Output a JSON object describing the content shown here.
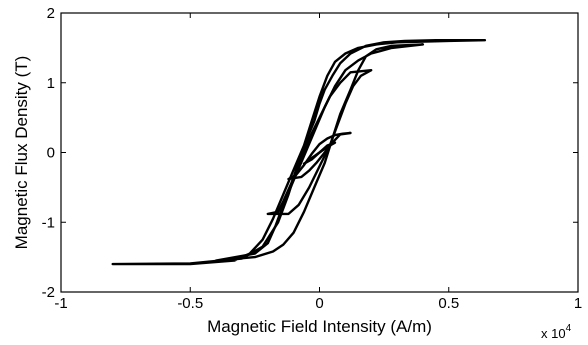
{
  "chart_data": {
    "type": "line",
    "title": "",
    "xlabel": "Magnetic Field Intensity (A/m)",
    "ylabel": "Magnetic Flux Density (T)",
    "x_scale_note": {
      "prefix": "x 10",
      "exponent": "4"
    },
    "xlim": [
      -1,
      1
    ],
    "ylim": [
      -2,
      2
    ],
    "x_ticks": [
      "-1",
      "-0.5",
      "0",
      "0.5",
      "1"
    ],
    "y_ticks": [
      "2",
      "1",
      "0",
      "-1",
      "-2"
    ],
    "grid": false,
    "legend": "none",
    "series": [
      {
        "x": [
          -0.8,
          -0.5,
          -0.33,
          -0.27,
          -0.22,
          -0.18,
          -0.14,
          -0.1,
          -0.06,
          -0.02,
          0.0,
          0.02,
          0.05,
          0.08,
          0.12,
          0.18,
          0.25,
          0.33,
          0.45,
          0.64,
          0.64,
          0.5,
          0.3,
          0.22,
          0.15,
          0.1,
          0.06,
          0.03,
          0.0,
          -0.03,
          -0.06,
          -0.09,
          -0.12,
          -0.16,
          -0.22,
          -0.3,
          -0.5,
          -0.8
        ],
        "y": [
          -1.6,
          -1.6,
          -1.55,
          -1.45,
          -1.25,
          -0.95,
          -0.6,
          -0.25,
          0.1,
          0.45,
          0.7,
          0.9,
          1.1,
          1.28,
          1.42,
          1.53,
          1.58,
          1.6,
          1.61,
          1.61,
          1.61,
          1.6,
          1.58,
          1.55,
          1.5,
          1.42,
          1.3,
          1.1,
          0.8,
          0.45,
          0.1,
          -0.25,
          -0.6,
          -1.0,
          -1.35,
          -1.52,
          -1.59,
          -1.6
        ]
      },
      {
        "x": [
          -0.4,
          -0.25,
          -0.2,
          -0.17,
          -0.14,
          -0.1,
          -0.06,
          -0.02,
          0.02,
          0.06,
          0.1,
          0.15,
          0.2,
          0.28,
          0.4,
          0.28,
          0.22,
          0.18,
          0.15,
          0.12,
          0.08,
          0.05,
          0.02,
          -0.02,
          -0.06,
          -0.1,
          -0.14,
          -0.18,
          -0.25,
          -0.4
        ],
        "y": [
          -1.55,
          -1.45,
          -1.3,
          -1.05,
          -0.75,
          -0.4,
          -0.05,
          0.3,
          0.65,
          0.95,
          1.18,
          1.32,
          1.42,
          1.5,
          1.55,
          1.53,
          1.48,
          1.38,
          1.18,
          0.9,
          0.55,
          0.2,
          -0.15,
          -0.5,
          -0.85,
          -1.15,
          -1.32,
          -1.42,
          -1.5,
          -1.55
        ]
      },
      {
        "x": [
          -0.2,
          -0.16,
          -0.14,
          -0.11,
          -0.08,
          -0.04,
          0.0,
          0.04,
          0.08,
          0.12,
          0.2,
          0.16,
          0.13,
          0.1,
          0.07,
          0.04,
          0.0,
          -0.04,
          -0.08,
          -0.12,
          -0.2
        ],
        "y": [
          -0.88,
          -0.85,
          -0.7,
          -0.45,
          -0.15,
          0.2,
          0.5,
          0.8,
          1.0,
          1.15,
          1.18,
          1.1,
          0.95,
          0.7,
          0.4,
          0.1,
          -0.2,
          -0.5,
          -0.75,
          -0.88,
          -0.88
        ]
      },
      {
        "x": [
          -0.12,
          -0.09,
          -0.06,
          -0.03,
          0.0,
          0.03,
          0.06,
          0.09,
          0.12,
          0.08,
          0.05,
          0.02,
          -0.01,
          -0.04,
          -0.07,
          -0.12
        ],
        "y": [
          -0.38,
          -0.32,
          -0.18,
          -0.02,
          0.12,
          0.2,
          0.25,
          0.27,
          0.28,
          0.26,
          0.14,
          0.0,
          -0.14,
          -0.26,
          -0.35,
          -0.38
        ]
      },
      {
        "x": [
          -0.06,
          -0.03,
          0.0,
          0.03,
          0.06,
          0.03,
          0.0,
          -0.03,
          -0.06
        ],
        "y": [
          -0.16,
          -0.1,
          0.0,
          0.08,
          0.14,
          0.1,
          0.0,
          -0.08,
          -0.16
        ]
      },
      {
        "x": [
          -0.03,
          -0.01,
          0.01,
          0.03,
          0.01,
          -0.01,
          -0.03
        ],
        "y": [
          -0.08,
          -0.03,
          0.03,
          0.07,
          0.03,
          -0.03,
          -0.08
        ]
      }
    ]
  }
}
